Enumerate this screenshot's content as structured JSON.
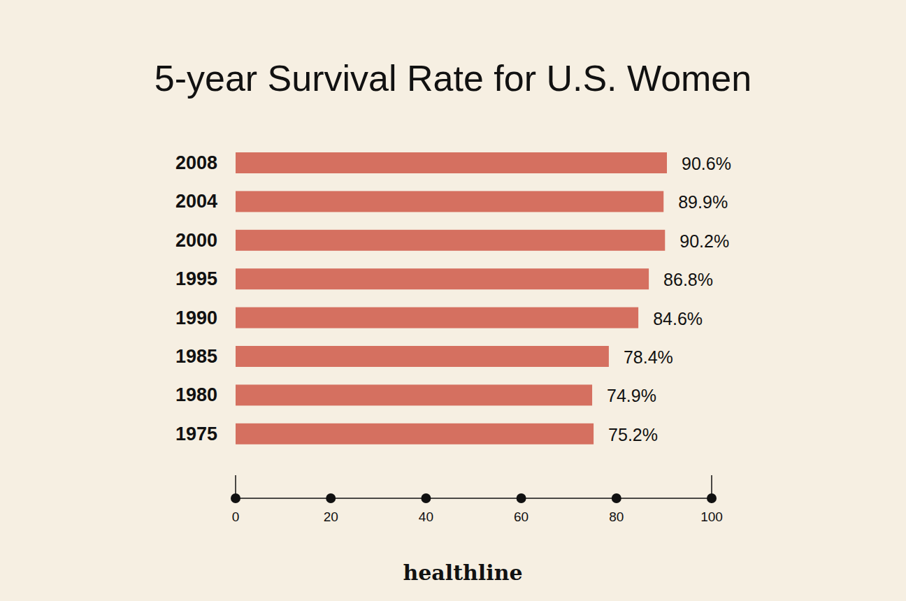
{
  "chart_data": {
    "type": "bar",
    "title": "5-year Survival Rate for U.S. Women",
    "orientation": "horizontal",
    "categories": [
      "2008",
      "2004",
      "2000",
      "1995",
      "1990",
      "1985",
      "1980",
      "1975"
    ],
    "values": [
      90.6,
      89.9,
      90.2,
      86.8,
      84.6,
      78.4,
      74.9,
      75.2
    ],
    "value_labels": [
      "90.6%",
      "89.9%",
      "90.2%",
      "86.8%",
      "84.6%",
      "78.4%",
      "74.9%",
      "75.2%"
    ],
    "data_labels": true,
    "color": "#d57060",
    "xlim": [
      0,
      100
    ],
    "xticks": [
      0,
      20,
      40,
      60,
      80,
      100
    ],
    "grid": false,
    "source": "healthline"
  }
}
